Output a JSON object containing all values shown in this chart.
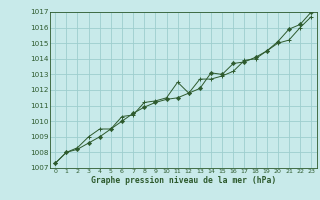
{
  "title": "Graphe pression niveau de la mer (hPa)",
  "bg_color": "#c8eaea",
  "grid_color": "#9ecece",
  "line_color": "#2d5a2d",
  "marker_color": "#2d5a2d",
  "xlim": [
    -0.5,
    23.5
  ],
  "ylim": [
    1007,
    1017
  ],
  "xticks": [
    0,
    1,
    2,
    3,
    4,
    5,
    6,
    7,
    8,
    9,
    10,
    11,
    12,
    13,
    14,
    15,
    16,
    17,
    18,
    19,
    20,
    21,
    22,
    23
  ],
  "yticks": [
    1007,
    1008,
    1009,
    1010,
    1011,
    1012,
    1013,
    1014,
    1015,
    1016,
    1017
  ],
  "series1": [
    1007.3,
    1008.0,
    1008.2,
    1008.6,
    1009.0,
    1009.5,
    1010.0,
    1010.5,
    1010.9,
    1011.2,
    1011.4,
    1011.5,
    1011.8,
    1012.1,
    1013.1,
    1013.0,
    1013.7,
    1013.8,
    1014.1,
    1014.5,
    1015.1,
    1015.9,
    1016.2,
    1017.0
  ],
  "series2": [
    1007.3,
    1008.0,
    1008.3,
    1009.0,
    1009.5,
    1009.5,
    1010.3,
    1010.4,
    1011.2,
    1011.3,
    1011.5,
    1012.5,
    1011.8,
    1012.7,
    1012.7,
    1012.9,
    1013.2,
    1013.9,
    1014.0,
    1014.5,
    1015.0,
    1015.2,
    1016.0,
    1016.7
  ]
}
